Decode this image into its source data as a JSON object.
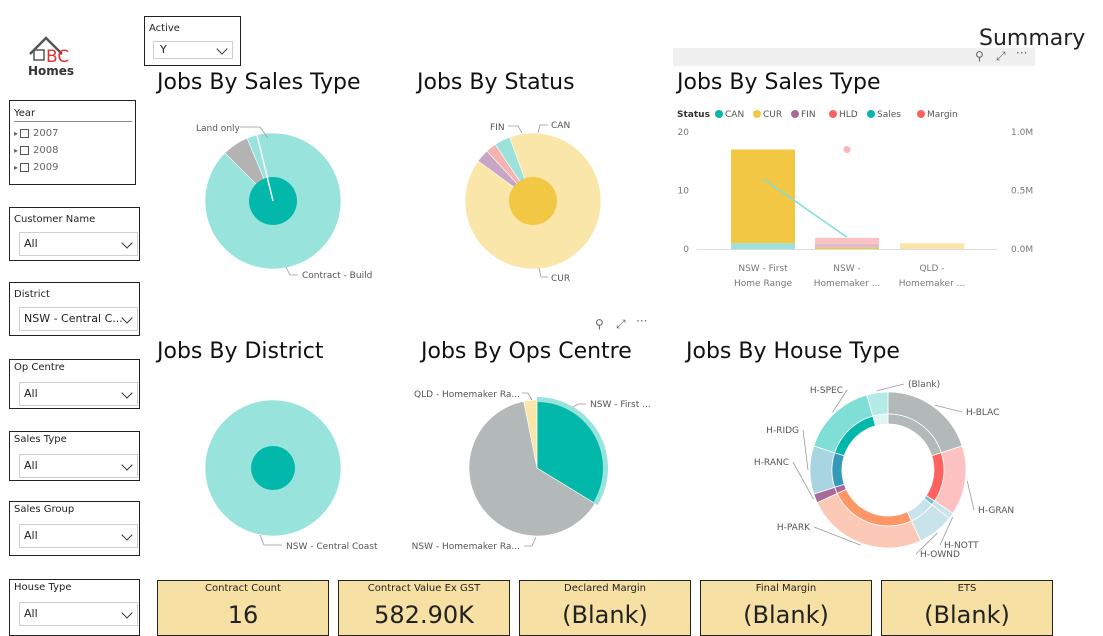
{
  "logo": {
    "text": "Homes",
    "letters": "BC"
  },
  "page_title": "Summary",
  "slicers": {
    "active": {
      "label": "Active",
      "value": "Y"
    },
    "year": {
      "label": "Year",
      "items": [
        "2007",
        "2008",
        "2009"
      ]
    },
    "customer_name": {
      "label": "Customer Name",
      "value": "All"
    },
    "district": {
      "label": "District",
      "value": "NSW - Central C..."
    },
    "op_centre": {
      "label": "Op Centre",
      "value": "All"
    },
    "sales_type": {
      "label": "Sales Type",
      "value": "All"
    },
    "sales_group": {
      "label": "Sales Group",
      "value": "All"
    },
    "house_type": {
      "label": "House Type",
      "value": "All"
    }
  },
  "visual_titles": {
    "sales_type": "Jobs By Sales Type",
    "status": "Jobs By Status",
    "sales_type_combo": "Jobs By Sales Type",
    "district": "Jobs By District",
    "ops_centre": "Jobs By Ops Centre",
    "house_type": "Jobs By House Type"
  },
  "kpis": [
    {
      "label": "Contract Count",
      "value": "16"
    },
    {
      "label": "Contract Value Ex GST",
      "value": "582.90K"
    },
    {
      "label": "Declared Margin",
      "value": "(Blank)"
    },
    {
      "label": "Final Margin",
      "value": "(Blank)"
    },
    {
      "label": "ETS",
      "value": "(Blank)"
    }
  ],
  "colors": {
    "teal": "#01b8aa",
    "light_teal": "#98e3dc",
    "yellow": "#f2c744",
    "light_yellow": "#fbe6a9",
    "kpi_bg": "#f6e0a4"
  },
  "icons": [
    "pin-icon",
    "focus-mode-icon",
    "more-options-icon"
  ],
  "chart_data": [
    {
      "type": "pie",
      "title": "Jobs By Sales Type",
      "labels": [
        "Contract - Build",
        "Land only"
      ],
      "values": [
        15,
        1
      ]
    },
    {
      "type": "pie",
      "title": "Jobs By Status",
      "labels": [
        "CUR",
        "FIN",
        "HLD",
        "CAN"
      ],
      "values": [
        14.5,
        0.5,
        0.4,
        0.6
      ]
    },
    {
      "type": "bar",
      "title": "Jobs By Sales Type",
      "legend_title": "Status",
      "legend": [
        "CAN",
        "CUR",
        "FIN",
        "HLD",
        "Sales",
        "Margin"
      ],
      "categories": [
        "NSW - First Home Range",
        "NSW - Homemaker ...",
        "QLD - Homemaker ..."
      ],
      "series": [
        {
          "name": "CAN",
          "values": [
            1,
            0,
            0
          ]
        },
        {
          "name": "CUR",
          "values": [
            16,
            0.3,
            1
          ]
        },
        {
          "name": "FIN",
          "values": [
            0,
            0.6,
            0
          ]
        },
        {
          "name": "HLD",
          "values": [
            0,
            1,
            0
          ]
        },
        {
          "name": "Sales",
          "values": [
            0.6,
            0.1,
            null
          ]
        },
        {
          "name": "Margin",
          "values": [
            null,
            0.85,
            null
          ]
        }
      ],
      "yticks_left": [
        "20",
        "10",
        "0"
      ],
      "yticks_right": [
        "1.0M",
        "0.5M",
        "0.0M"
      ],
      "ylim": [
        0,
        20
      ],
      "ylim_right": [
        0,
        1
      ]
    },
    {
      "type": "pie",
      "title": "Jobs By District",
      "labels": [
        "NSW - Central Coast"
      ],
      "values": [
        16
      ]
    },
    {
      "type": "pie",
      "title": "Jobs By Ops Centre",
      "labels": [
        "NSW - First ...",
        "NSW - Homemaker Ra...",
        "QLD - Homemaker Ra..."
      ],
      "values": [
        5.4,
        10.1,
        0.5
      ]
    },
    {
      "type": "donut",
      "title": "Jobs By House Type",
      "labels": [
        "H-BLAC",
        "H-GRAN",
        "H-NOTT",
        "H-OWND",
        "H-PARK",
        "H-RANC",
        "H-RIDG",
        "H-SPEC",
        "(Blank)"
      ],
      "values": [
        3.2,
        2.3,
        0.2,
        1.2,
        4.0,
        0.3,
        1.6,
        2.5,
        0.7
      ]
    }
  ]
}
